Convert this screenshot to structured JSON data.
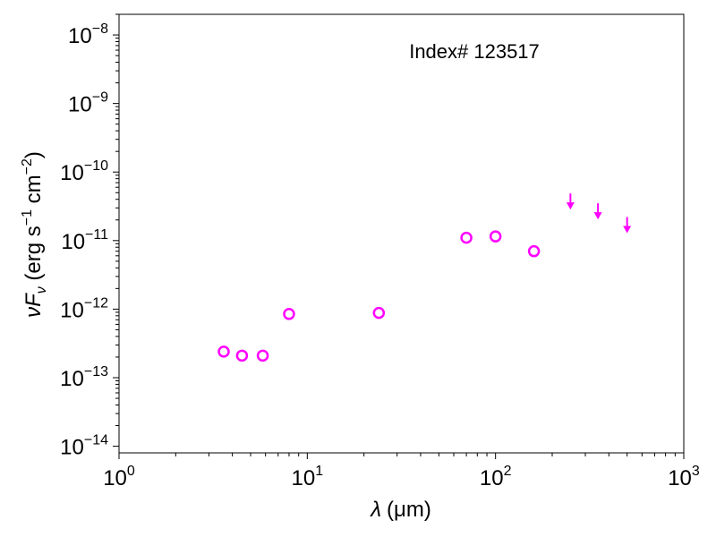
{
  "chart_data": {
    "type": "scatter",
    "annotation": "Index# 123517",
    "xlabel": {
      "symbol": "λ",
      "unit": "(μm)"
    },
    "ylabel": {
      "prefix": "νF",
      "subscript": "ν",
      "unit_text": " (erg s",
      "exp1": "−1",
      "mid": " cm",
      "exp2": "−2",
      "close": ")"
    },
    "xscale": "log",
    "yscale": "log",
    "xlim": [
      1,
      1000
    ],
    "ylim": [
      8e-15,
      2e-08
    ],
    "x_ticks": [
      {
        "base": "10",
        "exp": "0",
        "value": 1
      },
      {
        "base": "10",
        "exp": "1",
        "value": 10
      },
      {
        "base": "10",
        "exp": "2",
        "value": 100
      },
      {
        "base": "10",
        "exp": "3",
        "value": 1000
      }
    ],
    "y_ticks": [
      {
        "base": "10",
        "exp": "−14",
        "value": 1e-14
      },
      {
        "base": "10",
        "exp": "−13",
        "value": 1e-13
      },
      {
        "base": "10",
        "exp": "−12",
        "value": 1e-12
      },
      {
        "base": "10",
        "exp": "−11",
        "value": 1e-11
      },
      {
        "base": "10",
        "exp": "−10",
        "value": 1e-10
      },
      {
        "base": "10",
        "exp": "−9",
        "value": 1e-09
      },
      {
        "base": "10",
        "exp": "−8",
        "value": 1e-08
      }
    ],
    "color": "#ff00ff",
    "detections": [
      {
        "x": 3.6,
        "y": 2.4e-13
      },
      {
        "x": 4.5,
        "y": 2.1e-13
      },
      {
        "x": 5.8,
        "y": 2.1e-13
      },
      {
        "x": 8.0,
        "y": 8.5e-13
      },
      {
        "x": 24,
        "y": 8.8e-13
      },
      {
        "x": 70,
        "y": 1.1e-11
      },
      {
        "x": 100,
        "y": 1.15e-11
      },
      {
        "x": 160,
        "y": 7e-12
      }
    ],
    "upper_limits": [
      {
        "x": 250,
        "y": 3.2e-11
      },
      {
        "x": 350,
        "y": 2.3e-11
      },
      {
        "x": 500,
        "y": 1.45e-11
      }
    ]
  }
}
